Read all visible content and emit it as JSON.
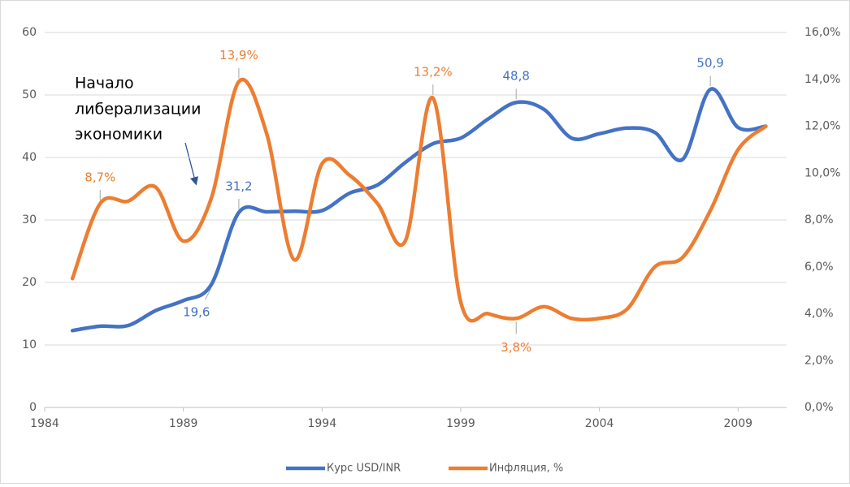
{
  "chart_data": {
    "type": "line",
    "annotation": [
      "Начало",
      "либерализации",
      "экономики"
    ],
    "x": [
      1985,
      1986,
      1987,
      1988,
      1989,
      1990,
      1991,
      1992,
      1993,
      1994,
      1995,
      1996,
      1997,
      1998,
      1999,
      2000,
      2001,
      2002,
      2003,
      2004,
      2005,
      2006,
      2007,
      2008,
      2009,
      2010
    ],
    "xlim": [
      1984,
      2010.75
    ],
    "xticks": [
      1984,
      1989,
      1994,
      1999,
      2004,
      2009
    ],
    "ylim": [
      0,
      60
    ],
    "yticks": [
      0,
      10,
      20,
      30,
      40,
      50,
      60
    ],
    "y2lim": [
      0,
      16
    ],
    "y2ticks": [
      {
        "value": 0,
        "label": "0,0%"
      },
      {
        "value": 2,
        "label": "2,0%"
      },
      {
        "value": 4,
        "label": "4,0%"
      },
      {
        "value": 6,
        "label": "6,0%"
      },
      {
        "value": 8,
        "label": "8,0%"
      },
      {
        "value": 10,
        "label": "10,0%"
      },
      {
        "value": 12,
        "label": "12,0%"
      },
      {
        "value": 14,
        "label": "14,0%"
      },
      {
        "value": 16,
        "label": "16,0%"
      }
    ],
    "grid": true,
    "legend": "bottom",
    "series": [
      {
        "name": "Курс USD/INR",
        "color": "#4472c4",
        "axis": "y",
        "values": [
          12.3,
          13.0,
          13.1,
          15.5,
          17.1,
          19.6,
          31.2,
          31.3,
          31.4,
          31.5,
          34.3,
          35.6,
          39.2,
          42.2,
          43.1,
          46.2,
          48.8,
          47.7,
          43.1,
          43.8,
          44.7,
          44.0,
          39.7,
          50.9,
          44.8,
          45.0
        ],
        "value_labels": [
          null,
          null,
          null,
          null,
          null,
          "19,6",
          "31,2",
          null,
          null,
          null,
          null,
          null,
          null,
          null,
          null,
          null,
          "48,8",
          null,
          null,
          null,
          null,
          null,
          null,
          "50,9",
          null,
          null
        ]
      },
      {
        "name": "Инфляция, %",
        "color": "#ed7d31",
        "axis": "y2",
        "values": [
          5.5,
          8.7,
          8.8,
          9.4,
          7.1,
          8.9,
          13.9,
          11.7,
          6.3,
          10.4,
          9.9,
          8.7,
          7.1,
          13.2,
          4.5,
          4.0,
          3.8,
          4.3,
          3.8,
          3.8,
          4.2,
          6.0,
          6.4,
          8.4,
          11.0,
          12.0
        ],
        "value_labels": [
          null,
          "8,7%",
          null,
          null,
          null,
          null,
          "13,9%",
          null,
          null,
          null,
          null,
          null,
          null,
          "13,2%",
          null,
          null,
          "3,8%",
          null,
          null,
          null,
          null,
          null,
          null,
          null,
          null,
          null
        ]
      }
    ]
  }
}
